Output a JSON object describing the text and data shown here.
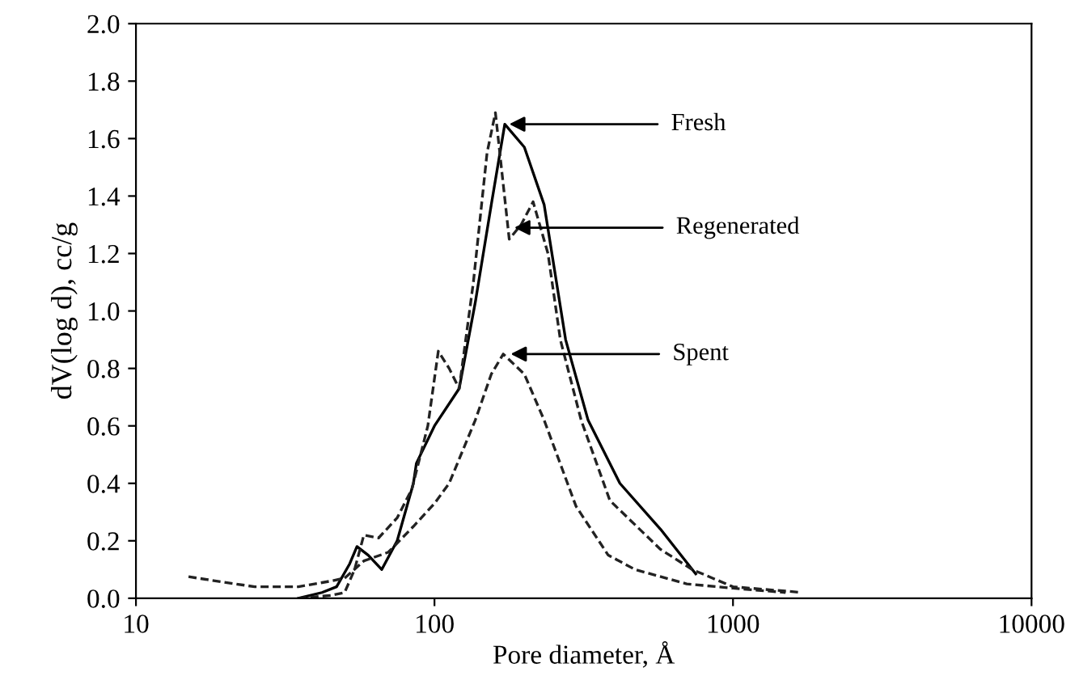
{
  "chart_data": {
    "type": "line",
    "xlabel": "Pore diameter, Å",
    "ylabel": "dV(log d), cc/g",
    "log": "x",
    "xlim": [
      10,
      10000
    ],
    "xticks": [
      10,
      100,
      1000,
      10000
    ],
    "ylim": [
      0,
      2.0
    ],
    "yticks": [
      {
        "value": 0,
        "label": "0.0"
      },
      {
        "value": 0.2,
        "label": "0.2"
      },
      {
        "value": 0.4,
        "label": "0.4"
      },
      {
        "value": 0.6,
        "label": "0.6"
      },
      {
        "value": 0.8,
        "label": "0.8"
      },
      {
        "value": 1.0,
        "label": "1.0"
      },
      {
        "value": 1.2,
        "label": "1.2"
      },
      {
        "value": 1.4,
        "label": "1.4"
      },
      {
        "value": 1.6,
        "label": "1.6"
      },
      {
        "value": 1.8,
        "label": "1.8"
      },
      {
        "value": 2.0,
        "label": "2.0"
      }
    ],
    "grid": false,
    "marker": "none",
    "series": [
      {
        "color": "#000000",
        "line_style": "solid",
        "x": [
          35,
          42,
          47,
          52,
          55,
          60,
          66.6,
          75,
          85,
          87,
          100,
          121,
          137,
          155,
          172,
          200,
          233,
          275,
          327,
          418,
          572,
          750
        ],
        "values": [
          0.0,
          0.02,
          0.04,
          0.12,
          0.18,
          0.15,
          0.1,
          0.2,
          0.4,
          0.47,
          0.6,
          0.73,
          1.03,
          1.37,
          1.65,
          1.57,
          1.37,
          0.9,
          0.62,
          0.4,
          0.24,
          0.085
        ]
      },
      {
        "color": "#222222",
        "line_style": "dashed",
        "x": [
          35,
          45,
          50,
          54,
          58,
          65,
          75,
          84,
          95,
          103,
          112,
          121,
          135,
          150,
          160,
          178,
          195,
          214,
          240,
          264,
          310,
          387,
          572,
          730,
          1000,
          1500,
          1700
        ],
        "values": [
          0.0,
          0.01,
          0.02,
          0.1,
          0.22,
          0.21,
          0.28,
          0.38,
          0.6,
          0.86,
          0.8,
          0.73,
          1.1,
          1.55,
          1.69,
          1.25,
          1.3,
          1.38,
          1.2,
          0.9,
          0.62,
          0.34,
          0.17,
          0.1,
          0.04,
          0.025,
          0.02
        ]
      },
      {
        "color": "#222222",
        "line_style": "dashed",
        "x": [
          15,
          20,
          25,
          35,
          45,
          50,
          58,
          70,
          85,
          100,
          112,
          137,
          155,
          170,
          200,
          233,
          298,
          382,
          470,
          700,
          1000,
          1500
        ],
        "values": [
          0.075,
          0.055,
          0.04,
          0.04,
          0.06,
          0.07,
          0.13,
          0.16,
          0.25,
          0.33,
          0.4,
          0.62,
          0.78,
          0.85,
          0.78,
          0.62,
          0.32,
          0.15,
          0.1,
          0.05,
          0.035,
          0.02
        ]
      }
    ],
    "annotations": [
      {
        "text": "Fresh",
        "x": 178,
        "y": 1.65
      },
      {
        "text": "Regenerated",
        "x": 185,
        "y": 1.29
      },
      {
        "text": "Spent",
        "x": 180,
        "y": 0.85
      }
    ]
  }
}
